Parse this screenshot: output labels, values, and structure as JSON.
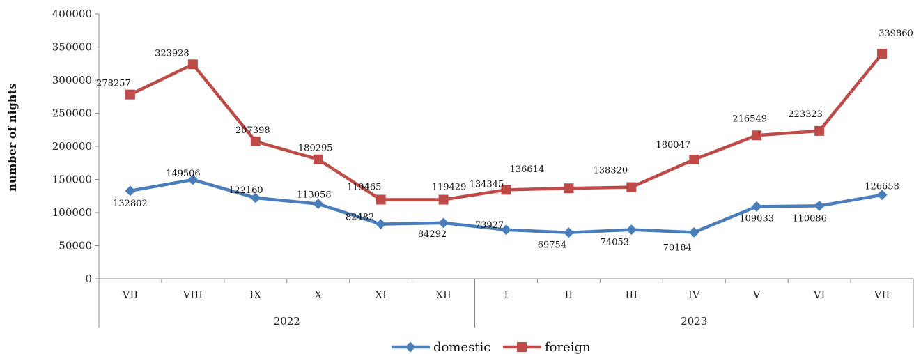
{
  "chart_data": {
    "type": "line",
    "ylabel": "number of nights",
    "ylim": [
      0,
      400000
    ],
    "yticks": [
      "0",
      "50000",
      "100000",
      "150000",
      "200000",
      "250000",
      "300000",
      "350000",
      "400000"
    ],
    "categories": [
      "VII",
      "VIII",
      "IX",
      "X",
      "XI",
      "XII",
      "I",
      "II",
      "III",
      "IV",
      "V",
      "VI",
      "VII"
    ],
    "groups": [
      {
        "label": "2022",
        "count": 6
      },
      {
        "label": "2023",
        "count": 7
      }
    ],
    "grid": false,
    "legend_position": "bottom",
    "series": [
      {
        "name": "domestic",
        "color": "#4a7ebb",
        "marker": "diamond",
        "values": [
          132802,
          149506,
          122160,
          113058,
          82482,
          84292,
          73927,
          69754,
          74053,
          70184,
          109033,
          110086,
          126658
        ]
      },
      {
        "name": "foreign",
        "color": "#be4b48",
        "marker": "square",
        "values": [
          278257,
          323928,
          207398,
          180295,
          119465,
          119429,
          134345,
          136614,
          138320,
          180047,
          216549,
          223323,
          339860
        ]
      }
    ]
  }
}
